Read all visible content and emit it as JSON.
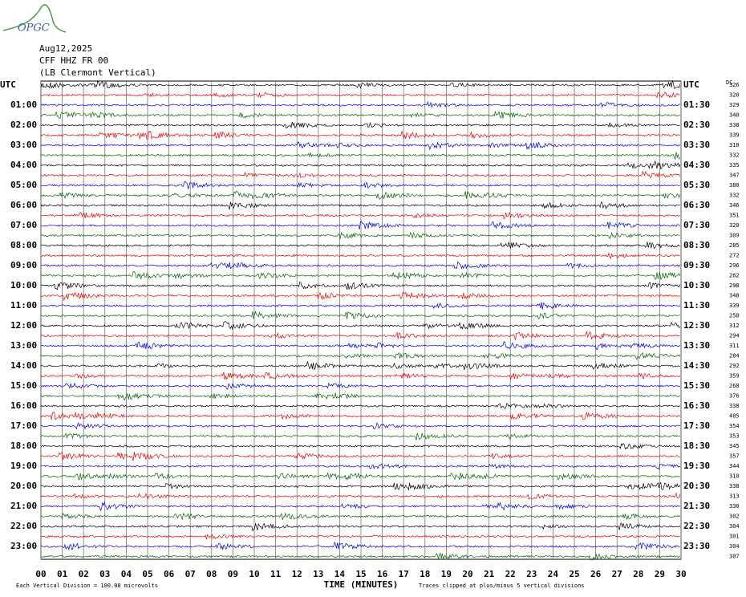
{
  "header": {
    "logo": "OPGC",
    "date": "Aug12,2025",
    "station": "CFF HHZ FR 00",
    "location": "(LB Clermont Vertical)"
  },
  "left_labels": [
    "UTC",
    "01:00",
    "02:00",
    "03:00",
    "04:00",
    "05:00",
    "06:00",
    "07:00",
    "08:00",
    "09:00",
    "10:00",
    "11:00",
    "12:00",
    "13:00",
    "14:00",
    "15:00",
    "16:00",
    "17:00",
    "18:00",
    "19:00",
    "20:00",
    "21:00",
    "22:00",
    "23:00"
  ],
  "right_labels": [
    "UTC",
    "01:30",
    "02:30",
    "03:30",
    "04:30",
    "05:30",
    "06:30",
    "07:30",
    "08:30",
    "09:30",
    "10:30",
    "11:30",
    "12:30",
    "13:30",
    "14:30",
    "15:30",
    "16:30",
    "17:30",
    "18:30",
    "19:30",
    "20:30",
    "21:30",
    "22:30",
    "23:30"
  ],
  "dc_header": "DC",
  "dc_values": [
    326,
    320,
    329,
    340,
    338,
    339,
    310,
    332,
    335,
    347,
    380,
    332,
    346,
    351,
    320,
    309,
    285,
    272,
    296,
    262,
    298,
    348,
    339,
    250,
    312,
    294,
    311,
    284,
    292,
    359,
    268,
    376,
    338,
    405,
    354,
    353,
    345,
    357,
    344,
    310,
    338,
    313,
    330,
    302,
    304,
    301,
    304,
    307
  ],
  "x_ticks": [
    "00",
    "01",
    "02",
    "03",
    "04",
    "05",
    "06",
    "07",
    "08",
    "09",
    "10",
    "11",
    "12",
    "13",
    "14",
    "15",
    "16",
    "17",
    "18",
    "19",
    "20",
    "21",
    "22",
    "23",
    "24",
    "25",
    "26",
    "27",
    "28",
    "29",
    "30"
  ],
  "x_axis_label": "TIME (MINUTES)",
  "footer_left": "Each Vertical Division =  100.00 microvolts",
  "footer_right": "Traces clipped at plus/minus 5 vertical divisions"
}
